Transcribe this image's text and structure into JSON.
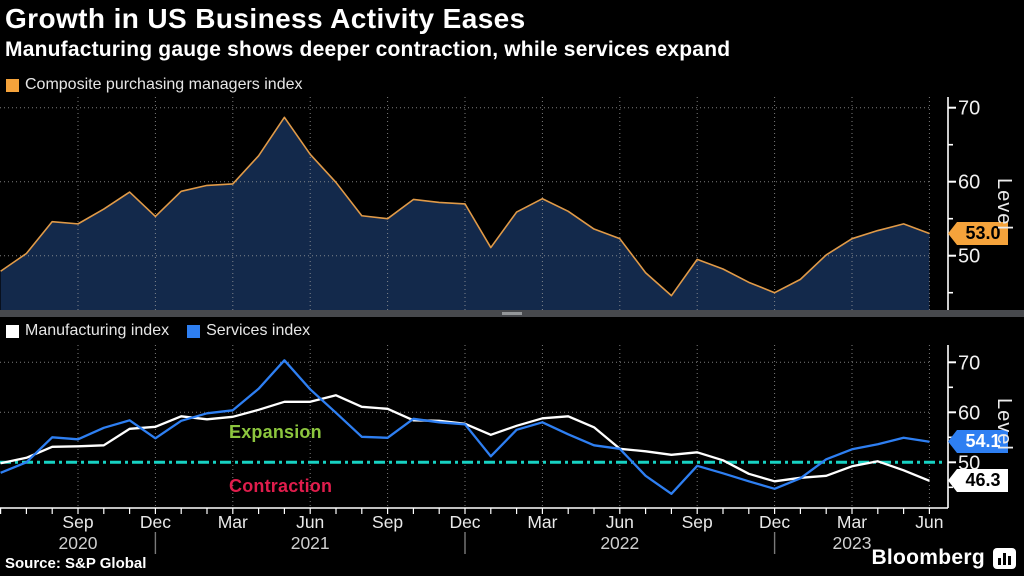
{
  "header": {
    "title": "Growth in US Business Activity Eases",
    "subtitle": "Manufacturing gauge shows deeper contraction, while services expand"
  },
  "legends": {
    "composite": "Composite purchasing managers index",
    "manufacturing": "Manufacturing index",
    "services": "Services index"
  },
  "axis": {
    "level_label": "Level",
    "y_major_ticks": [
      50,
      60,
      70
    ],
    "y_minor_ticks": [
      45,
      55,
      65
    ],
    "x_quarter_labels": [
      {
        "index": 3,
        "label": "Sep"
      },
      {
        "index": 6,
        "label": "Dec"
      },
      {
        "index": 9,
        "label": "Mar"
      },
      {
        "index": 12,
        "label": "Jun"
      },
      {
        "index": 15,
        "label": "Sep"
      },
      {
        "index": 18,
        "label": "Dec"
      },
      {
        "index": 21,
        "label": "Mar"
      },
      {
        "index": 24,
        "label": "Jun"
      },
      {
        "index": 27,
        "label": "Sep"
      },
      {
        "index": 30,
        "label": "Dec"
      },
      {
        "index": 33,
        "label": "Mar"
      },
      {
        "index": 36,
        "label": "Jun"
      }
    ],
    "x_year_labels": [
      {
        "index": 3,
        "label": "2020"
      },
      {
        "index": 12,
        "label": "2021"
      },
      {
        "index": 24,
        "label": "2022"
      },
      {
        "index": 33,
        "label": "2023"
      }
    ],
    "year_separator_indices": [
      6,
      18,
      30
    ]
  },
  "annotations": {
    "expansion": "Expansion",
    "contraction": "Contraction",
    "threshold_value": 50
  },
  "tags": {
    "composite": "53.0",
    "services": "54.1",
    "manufacturing": "46.3"
  },
  "footer": {
    "source": "Source: S&P Global",
    "brand": "Bloomberg"
  },
  "colors": {
    "background": "#000000",
    "composite_line": "#e09a48",
    "composite_fill": "#13294b",
    "composite_tag": "#f5a33b",
    "manufacturing": "#ffffff",
    "services": "#2e7ff2",
    "threshold": "#17d2c3",
    "expansion": "#8cc63e",
    "contraction": "#e01d4c",
    "grid": "#9b9b9b",
    "spine": "#ffffff",
    "month_label": "#e9e9e9",
    "year_label": "#cfcfcf",
    "year_separator": "#7a7a7a"
  },
  "months": [
    "Jun 2020",
    "Jul 2020",
    "Aug 2020",
    "Sep 2020",
    "Oct 2020",
    "Nov 2020",
    "Dec 2020",
    "Jan 2021",
    "Feb 2021",
    "Mar 2021",
    "Apr 2021",
    "May 2021",
    "Jun 2021",
    "Jul 2021",
    "Aug 2021",
    "Sep 2021",
    "Oct 2021",
    "Nov 2021",
    "Dec 2021",
    "Jan 2022",
    "Feb 2022",
    "Mar 2022",
    "Apr 2022",
    "May 2022",
    "Jun 2022",
    "Jul 2022",
    "Aug 2022",
    "Sep 2022",
    "Oct 2022",
    "Nov 2022",
    "Dec 2022",
    "Jan 2023",
    "Feb 2023",
    "Mar 2023",
    "Apr 2023",
    "May 2023",
    "Jun 2023"
  ],
  "chart_data": [
    {
      "type": "area",
      "title": "Composite purchasing managers index",
      "xlabel": "",
      "ylabel": "Level",
      "ylim": [
        42.5,
        71.6
      ],
      "grid": true,
      "x": [
        "Jun 2020",
        "Jul 2020",
        "Aug 2020",
        "Sep 2020",
        "Oct 2020",
        "Nov 2020",
        "Dec 2020",
        "Jan 2021",
        "Feb 2021",
        "Mar 2021",
        "Apr 2021",
        "May 2021",
        "Jun 2021",
        "Jul 2021",
        "Aug 2021",
        "Sep 2021",
        "Oct 2021",
        "Nov 2021",
        "Dec 2021",
        "Jan 2022",
        "Feb 2022",
        "Mar 2022",
        "Apr 2022",
        "May 2022",
        "Jun 2022",
        "Jul 2022",
        "Aug 2022",
        "Sep 2022",
        "Oct 2022",
        "Nov 2022",
        "Dec 2022",
        "Jan 2023",
        "Feb 2023",
        "Mar 2023",
        "Apr 2023",
        "May 2023",
        "Jun 2023"
      ],
      "values": [
        47.9,
        50.3,
        54.6,
        54.3,
        56.3,
        58.6,
        55.3,
        58.7,
        59.5,
        59.7,
        63.5,
        68.7,
        63.7,
        59.9,
        55.4,
        55.0,
        57.6,
        57.2,
        57.0,
        51.1,
        55.9,
        57.7,
        56.0,
        53.6,
        52.3,
        47.7,
        44.6,
        49.5,
        48.2,
        46.4,
        45.0,
        46.8,
        50.1,
        52.3,
        53.4,
        54.3,
        53.0
      ],
      "last_value_label": "53.0"
    },
    {
      "type": "line",
      "xlabel": "",
      "ylabel": "Level",
      "ylim": [
        41.0,
        73.5
      ],
      "grid": true,
      "x": [
        "Jun 2020",
        "Jul 2020",
        "Aug 2020",
        "Sep 2020",
        "Oct 2020",
        "Nov 2020",
        "Dec 2020",
        "Jan 2021",
        "Feb 2021",
        "Mar 2021",
        "Apr 2021",
        "May 2021",
        "Jun 2021",
        "Jul 2021",
        "Aug 2021",
        "Sep 2021",
        "Oct 2021",
        "Nov 2021",
        "Dec 2021",
        "Jan 2022",
        "Feb 2022",
        "Mar 2022",
        "Apr 2022",
        "May 2022",
        "Jun 2022",
        "Jul 2022",
        "Aug 2022",
        "Sep 2022",
        "Oct 2022",
        "Nov 2022",
        "Dec 2022",
        "Jan 2023",
        "Feb 2023",
        "Mar 2023",
        "Apr 2023",
        "May 2023",
        "Jun 2023"
      ],
      "series": [
        {
          "name": "Manufacturing index",
          "color": "#ffffff",
          "values": [
            49.8,
            50.9,
            53.1,
            53.2,
            53.4,
            56.7,
            57.1,
            59.2,
            58.6,
            59.1,
            60.5,
            62.1,
            62.1,
            63.4,
            61.1,
            60.7,
            58.4,
            58.3,
            57.7,
            55.5,
            57.3,
            58.8,
            59.2,
            57.0,
            52.7,
            52.2,
            51.5,
            52.0,
            50.4,
            47.7,
            46.2,
            46.9,
            47.3,
            49.2,
            50.2,
            48.4,
            46.3
          ],
          "last_value_label": "46.3"
        },
        {
          "name": "Services index",
          "color": "#2e7ff2",
          "values": [
            47.9,
            50.0,
            55.0,
            54.6,
            56.9,
            58.4,
            54.8,
            58.3,
            59.8,
            60.4,
            64.7,
            70.4,
            64.6,
            59.9,
            55.1,
            54.9,
            58.7,
            58.0,
            57.6,
            51.2,
            56.5,
            58.0,
            55.6,
            53.4,
            52.7,
            47.3,
            43.7,
            49.3,
            47.8,
            46.2,
            44.7,
            46.8,
            50.6,
            52.6,
            53.6,
            54.9,
            54.1
          ],
          "last_value_label": "54.1"
        }
      ],
      "threshold": {
        "value": 50,
        "above_label": "Expansion",
        "below_label": "Contraction"
      },
      "legend_position": "top-left"
    }
  ]
}
